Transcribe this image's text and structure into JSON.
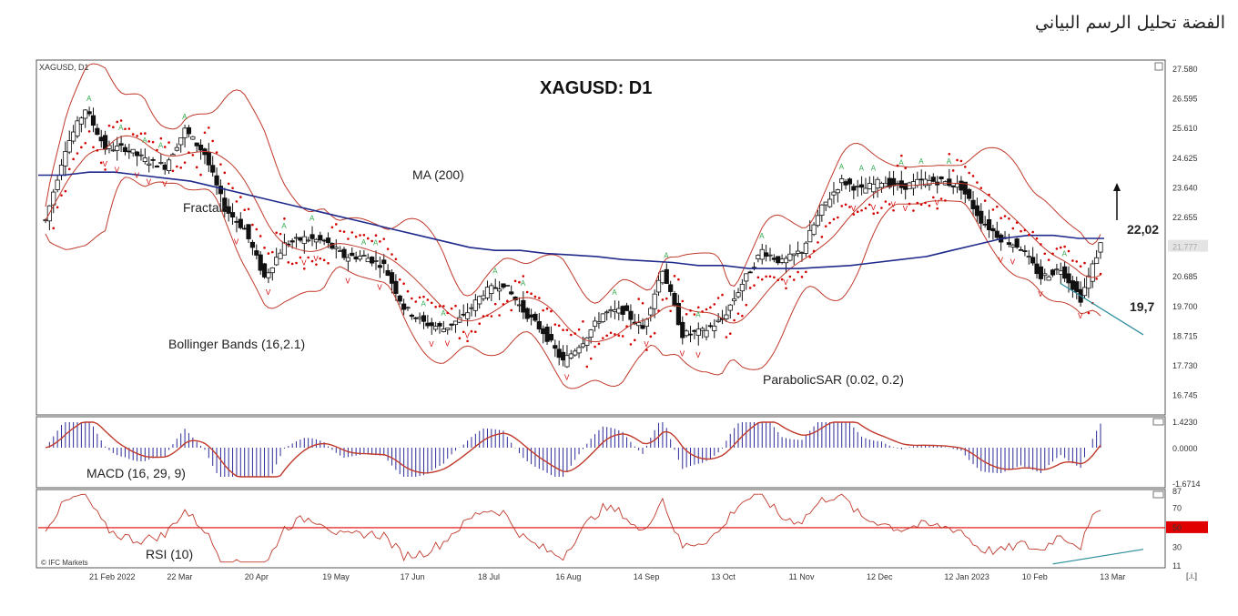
{
  "page": {
    "title": "الفضة تحليل الرسم البياني"
  },
  "chart_data": {
    "type": "candlestick",
    "symbol_label": "XAGUSD, D1",
    "title": "XAGUSD: D1",
    "colors": {
      "ma200": "#1f2a8c",
      "bollinger": "#c0392b",
      "sar": "#d40000",
      "fractal_up": "#2ea84a",
      "fractal_down": "#d40000",
      "macd_hist": "#2b2b9a",
      "macd_signal": "#c0392b",
      "rsi_line": "#c0392b",
      "rsi_level": "#e00000",
      "up_candle": "#ffffff",
      "down_candle": "#111111"
    },
    "price_axis": {
      "ticks": [
        "27.580",
        "26.595",
        "25.610",
        "24.625",
        "23.640",
        "22.655",
        "21.777",
        "20.685",
        "19.700",
        "18.715",
        "17.730",
        "16.745"
      ],
      "ylim": [
        16.2,
        27.8
      ],
      "last_price": "21.777"
    },
    "x_axis": {
      "ticks": [
        "21 Feb 2022",
        "22 Mar",
        "20 Apr",
        "19 May",
        "17 Jun",
        "18 Jul",
        "16 Aug",
        "14 Sep",
        "13 Oct",
        "11 Nov",
        "12 Dec",
        "12 Jan 2023",
        "10 Feb",
        "13 Mar"
      ]
    },
    "annotations": {
      "ma_label": "MA (200)",
      "fractals_label": "Fractals",
      "bollinger_label": "Bollinger Bands (16,2.1)",
      "sar_label": "ParabolicSAR (0.02, 0.2)",
      "resistance": "22,02",
      "support": "19,7"
    },
    "price_points": [
      [
        "21 Feb 2022",
        22.6
      ],
      [
        "28 Feb",
        25.0
      ],
      [
        "08 Mar",
        26.3
      ],
      [
        "15 Mar",
        25.0
      ],
      [
        "22 Mar",
        25.0
      ],
      [
        "30 Mar",
        24.6
      ],
      [
        "07 Apr",
        24.4
      ],
      [
        "14 Apr",
        25.6
      ],
      [
        "20 Apr",
        24.8
      ],
      [
        "28 Apr",
        23.0
      ],
      [
        "05 May",
        22.3
      ],
      [
        "12 May",
        20.7
      ],
      [
        "19 May",
        21.8
      ],
      [
        "26 May",
        22.0
      ],
      [
        "03 Jun",
        21.9
      ],
      [
        "10 Jun",
        21.4
      ],
      [
        "17 Jun",
        21.4
      ],
      [
        "24 Jun",
        21.1
      ],
      [
        "01 Jul",
        19.7
      ],
      [
        "08 Jul",
        19.2
      ],
      [
        "18 Jul",
        19.0
      ],
      [
        "25 Jul",
        19.4
      ],
      [
        "01 Aug",
        20.2
      ],
      [
        "08 Aug",
        20.5
      ],
      [
        "16 Aug",
        19.6
      ],
      [
        "23 Aug",
        18.9
      ],
      [
        "30 Aug",
        17.9
      ],
      [
        "07 Sep",
        18.6
      ],
      [
        "14 Sep",
        19.5
      ],
      [
        "21 Sep",
        19.6
      ],
      [
        "28 Sep",
        19.0
      ],
      [
        "05 Oct",
        21.0
      ],
      [
        "13 Oct",
        18.8
      ],
      [
        "20 Oct",
        18.9
      ],
      [
        "27 Oct",
        19.3
      ],
      [
        "03 Nov",
        20.5
      ],
      [
        "11 Nov",
        21.6
      ],
      [
        "18 Nov",
        21.2
      ],
      [
        "25 Nov",
        21.6
      ],
      [
        "02 Dec",
        23.0
      ],
      [
        "12 Dec",
        23.9
      ],
      [
        "19 Dec",
        23.6
      ],
      [
        "26 Dec",
        23.9
      ],
      [
        "03 Jan",
        23.7
      ],
      [
        "12 Jan 2023",
        23.9
      ],
      [
        "19 Jan",
        23.9
      ],
      [
        "26 Jan",
        23.7
      ],
      [
        "02 Feb",
        22.6
      ],
      [
        "10 Feb",
        22.0
      ],
      [
        "17 Feb",
        21.7
      ],
      [
        "24 Feb",
        20.7
      ],
      [
        "03 Mar",
        21.0
      ],
      [
        "10 Mar",
        20.0
      ],
      [
        "13 Mar",
        21.8
      ]
    ],
    "ma200": [
      24.1,
      24.1,
      24.2,
      24.2,
      24.1,
      24.0,
      23.9,
      23.7,
      23.5,
      23.3,
      23.1,
      22.9,
      22.7,
      22.5,
      22.3,
      22.1,
      21.9,
      21.7,
      21.6,
      21.6,
      21.5,
      21.45,
      21.4,
      21.3,
      21.25,
      21.2,
      21.1,
      21.1,
      21.0,
      21.0,
      21.0,
      21.05,
      21.1,
      21.2,
      21.3,
      21.4,
      21.6,
      21.8,
      22.0,
      22.1,
      22.1,
      22.0,
      22.0
    ],
    "macd": {
      "label": "MACD (16, 29, 9)",
      "ticks": [
        "1.4230",
        "0.0000",
        "-1.6714"
      ]
    },
    "rsi": {
      "label": "RSI (10)",
      "ticks": [
        "87",
        "70",
        "50",
        "30",
        "11"
      ],
      "level": "50"
    },
    "watermark": "© IFC Markets",
    "corner_label": "[.i.]"
  }
}
